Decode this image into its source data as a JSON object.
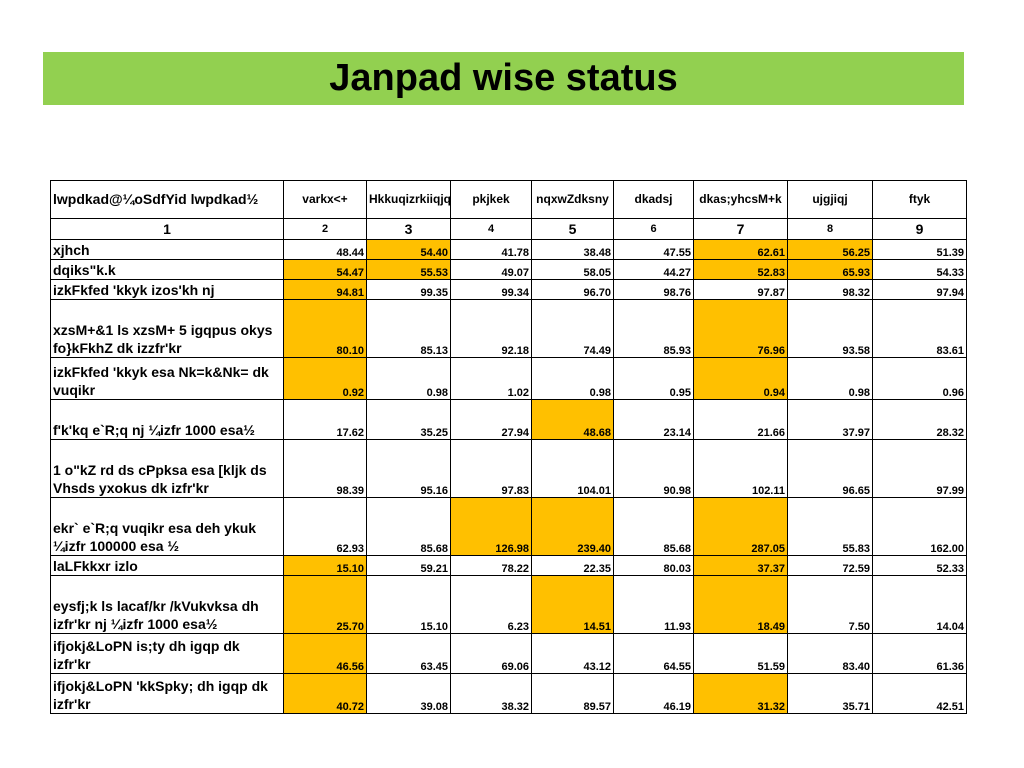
{
  "title": "Janpad wise status",
  "colors": {
    "banner": "#92d050",
    "highlight": "#ffc000"
  },
  "header": [
    "lwpdkad@¼oSdfYid lwpdkad½",
    "varkx<+",
    "Hkkuqizrkiiqjq",
    "pkjkek",
    "nqxwZdksny",
    "dkadsj",
    "dkas;yhcsM+k",
    "ujgjiqj",
    "ftyk"
  ],
  "index": [
    "1",
    "2",
    "3",
    "4",
    "5",
    "6",
    "7",
    "8",
    "9"
  ],
  "rows": [
    {
      "label": "xjhch",
      "values": [
        "48.44",
        "54.40",
        "41.78",
        "38.48",
        "47.55",
        "62.61",
        "56.25",
        "51.39"
      ],
      "highlight": [
        false,
        true,
        false,
        false,
        false,
        true,
        true,
        false
      ]
    },
    {
      "label": "dqiks\"k.k",
      "values": [
        "54.47",
        "55.53",
        "49.07",
        "58.05",
        "44.27",
        "52.83",
        "65.93",
        "54.33"
      ],
      "highlight": [
        true,
        true,
        false,
        false,
        false,
        true,
        true,
        false
      ]
    },
    {
      "label": "izkFkfed 'kkyk izos'kh nj",
      "values": [
        "94.81",
        "99.35",
        "99.34",
        "96.70",
        "98.76",
        "97.87",
        "98.32",
        "97.94"
      ],
      "highlight": [
        true,
        false,
        false,
        false,
        false,
        false,
        false,
        false
      ]
    },
    {
      "label": "xzsM+&1 ls xzsM+ 5 igqpus okys fo}kFkhZ dk izzfr'kr",
      "values": [
        "80.10",
        "85.13",
        "92.18",
        "74.49",
        "85.93",
        "76.96",
        "93.58",
        "83.61"
      ],
      "highlight": [
        true,
        false,
        false,
        false,
        false,
        true,
        false,
        false
      ]
    },
    {
      "label": "izkFkfed 'kkyk esa Nk=k&Nk= dk vuqikr",
      "values": [
        "0.92",
        "0.98",
        "1.02",
        "0.98",
        "0.95",
        "0.94",
        "0.98",
        "0.96"
      ],
      "highlight": [
        true,
        false,
        false,
        false,
        false,
        true,
        false,
        false
      ]
    },
    {
      "label": "f'k'kq e`R;q nj ¼izfr 1000 esa½",
      "values": [
        "17.62",
        "35.25",
        "27.94",
        "48.68",
        "23.14",
        "21.66",
        "37.97",
        "28.32"
      ],
      "highlight": [
        false,
        false,
        false,
        true,
        false,
        false,
        false,
        false
      ]
    },
    {
      "label": "1 o\"kZ rd ds cPpksa esa [kljk ds Vhsds yxokus dk izfr'kr",
      "values": [
        "98.39",
        "95.16",
        "97.83",
        "104.01",
        "90.98",
        "102.11",
        "96.65",
        "97.99"
      ],
      "highlight": [
        false,
        false,
        false,
        false,
        false,
        false,
        false,
        false
      ]
    },
    {
      "label": "ekr` e`R;q vuqikr esa deh ykuk ¼izfr 100000 esa ½",
      "values": [
        "62.93",
        "85.68",
        "126.98",
        "239.40",
        "85.68",
        "287.05",
        "55.83",
        "162.00"
      ],
      "highlight": [
        false,
        false,
        true,
        true,
        false,
        true,
        false,
        false
      ]
    },
    {
      "label": "laLFkkxr izlo",
      "values": [
        "15.10",
        "59.21",
        "78.22",
        "22.35",
        "80.03",
        "37.37",
        "72.59",
        "52.33"
      ],
      "highlight": [
        true,
        false,
        false,
        false,
        false,
        true,
        false,
        false
      ]
    },
    {
      "label": "eysfj;k ls lacaf/kr /kVukvksa dh izfr'kr nj ¼izfr 1000 esa½",
      "values": [
        "25.70",
        "15.10",
        "6.23",
        "14.51",
        "11.93",
        "18.49",
        "7.50",
        "14.04"
      ],
      "highlight": [
        true,
        false,
        false,
        true,
        false,
        true,
        false,
        false
      ]
    },
    {
      "label": "ifjokj&LoPN is;ty dh igqp dk izfr'kr",
      "values": [
        "46.56",
        "63.45",
        "69.06",
        "43.12",
        "64.55",
        "51.59",
        "83.40",
        "61.36"
      ],
      "highlight": [
        true,
        false,
        false,
        false,
        false,
        false,
        false,
        false
      ]
    },
    {
      "label": "ifjokj&LoPN 'kkSpky; dh igqp dk izfr'kr",
      "values": [
        "40.72",
        "39.08",
        "38.32",
        "89.57",
        "46.19",
        "31.32",
        "35.71",
        "42.51"
      ],
      "highlight": [
        true,
        false,
        false,
        false,
        false,
        true,
        false,
        false
      ]
    }
  ]
}
